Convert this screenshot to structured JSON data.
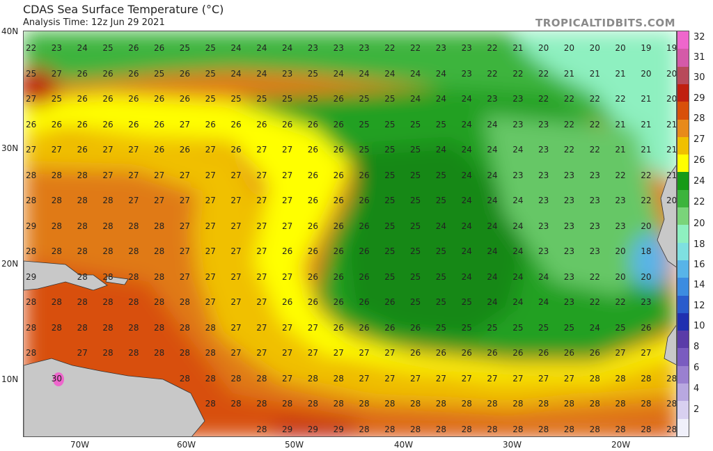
{
  "title": "CDAS Sea Surface Temperature (°C)",
  "subtitle": "Analysis Time: 12z Jun 29 2021",
  "credit": "TROPICALTIDBITS.COM",
  "lat_labels": [
    "40N",
    "30N",
    "20N",
    "10N"
  ],
  "lon_labels": [
    "70W",
    "60W",
    "50W",
    "40W",
    "30W",
    "20W"
  ],
  "colorbar": {
    "labels": [
      "32",
      "31",
      "30",
      "29",
      "28",
      "27",
      "26",
      "24",
      "22",
      "20",
      "18",
      "16",
      "14",
      "12",
      "10",
      "8",
      "6",
      "4",
      "2"
    ],
    "colors": [
      "#ee66cc",
      "#d45aa8",
      "#b84a5a",
      "#c02010",
      "#d8500a",
      "#e88a1a",
      "#f0c000",
      "#ffff00",
      "#179a17",
      "#3cb43c",
      "#7ad47a",
      "#8ef0c0",
      "#7ee0e0",
      "#58b4e8",
      "#3c8ce0",
      "#2a5ccc",
      "#2030b0",
      "#5a3ca8",
      "#7a5cc0",
      "#9a80d0",
      "#b8a8e0",
      "#d8d0f0",
      "#f0f0fa"
    ]
  },
  "land_color": "#c8c8c8",
  "sst_grid": {
    "rows": [
      [
        "22",
        "23",
        "24",
        "25",
        "26",
        "26",
        "25",
        "25",
        "24",
        "24",
        "24",
        "23",
        "23",
        "23",
        "22",
        "22",
        "23",
        "23",
        "22",
        "21",
        "20",
        "20",
        "20",
        "20",
        "19",
        "19"
      ],
      [
        "25",
        "27",
        "26",
        "26",
        "26",
        "25",
        "26",
        "25",
        "24",
        "24",
        "23",
        "25",
        "24",
        "24",
        "24",
        "24",
        "24",
        "23",
        "22",
        "22",
        "22",
        "21",
        "21",
        "21",
        "20",
        "20"
      ],
      [
        "27",
        "25",
        "26",
        "26",
        "26",
        "26",
        "26",
        "25",
        "25",
        "25",
        "25",
        "25",
        "26",
        "25",
        "25",
        "24",
        "24",
        "24",
        "23",
        "23",
        "22",
        "22",
        "22",
        "22",
        "21",
        "20"
      ],
      [
        "26",
        "26",
        "26",
        "26",
        "26",
        "26",
        "27",
        "26",
        "26",
        "26",
        "26",
        "26",
        "26",
        "25",
        "25",
        "25",
        "25",
        "24",
        "24",
        "23",
        "23",
        "22",
        "22",
        "21",
        "21",
        "21"
      ],
      [
        "27",
        "27",
        "26",
        "27",
        "27",
        "26",
        "26",
        "27",
        "26",
        "27",
        "27",
        "26",
        "26",
        "25",
        "25",
        "25",
        "24",
        "24",
        "24",
        "24",
        "23",
        "22",
        "22",
        "21",
        "21",
        "21"
      ],
      [
        "28",
        "28",
        "28",
        "27",
        "27",
        "27",
        "27",
        "27",
        "27",
        "27",
        "27",
        "26",
        "26",
        "26",
        "25",
        "25",
        "25",
        "24",
        "24",
        "23",
        "23",
        "23",
        "23",
        "22",
        "22",
        "21"
      ],
      [
        "28",
        "28",
        "28",
        "28",
        "27",
        "27",
        "27",
        "27",
        "27",
        "27",
        "27",
        "26",
        "26",
        "26",
        "25",
        "25",
        "25",
        "24",
        "24",
        "24",
        "23",
        "23",
        "23",
        "23",
        "22",
        "20"
      ],
      [
        "29",
        "28",
        "28",
        "28",
        "28",
        "28",
        "27",
        "27",
        "27",
        "27",
        "27",
        "26",
        "26",
        "26",
        "25",
        "25",
        "24",
        "24",
        "24",
        "24",
        "23",
        "23",
        "23",
        "23",
        "20",
        ""
      ],
      [
        "28",
        "28",
        "28",
        "28",
        "28",
        "28",
        "27",
        "27",
        "27",
        "27",
        "26",
        "26",
        "26",
        "26",
        "25",
        "25",
        "25",
        "24",
        "24",
        "24",
        "23",
        "23",
        "23",
        "20",
        "18",
        ""
      ],
      [
        "29",
        "",
        "28",
        "28",
        "28",
        "28",
        "27",
        "27",
        "27",
        "27",
        "27",
        "26",
        "26",
        "26",
        "25",
        "25",
        "25",
        "24",
        "24",
        "24",
        "24",
        "23",
        "22",
        "20",
        "20",
        ""
      ],
      [
        "28",
        "28",
        "28",
        "28",
        "28",
        "28",
        "28",
        "27",
        "27",
        "27",
        "26",
        "26",
        "26",
        "26",
        "26",
        "25",
        "25",
        "25",
        "24",
        "24",
        "24",
        "23",
        "22",
        "22",
        "23",
        ""
      ],
      [
        "28",
        "28",
        "28",
        "28",
        "28",
        "28",
        "28",
        "28",
        "27",
        "27",
        "27",
        "27",
        "26",
        "26",
        "26",
        "26",
        "25",
        "25",
        "25",
        "25",
        "25",
        "25",
        "24",
        "25",
        "26",
        ""
      ],
      [
        "28",
        "",
        "27",
        "28",
        "28",
        "28",
        "28",
        "28",
        "27",
        "27",
        "27",
        "27",
        "27",
        "27",
        "27",
        "26",
        "26",
        "26",
        "26",
        "26",
        "26",
        "26",
        "26",
        "27",
        "27",
        ""
      ],
      [
        "",
        "30",
        "",
        "",
        "",
        "",
        "28",
        "28",
        "28",
        "28",
        "27",
        "28",
        "28",
        "27",
        "27",
        "27",
        "27",
        "27",
        "27",
        "27",
        "27",
        "27",
        "28",
        "28",
        "28",
        "28"
      ],
      [
        "",
        "",
        "",
        "",
        "",
        "",
        "",
        "28",
        "28",
        "28",
        "28",
        "28",
        "28",
        "28",
        "28",
        "28",
        "28",
        "28",
        "28",
        "28",
        "28",
        "28",
        "28",
        "28",
        "28",
        "28"
      ],
      [
        "",
        "",
        "",
        "",
        "",
        "",
        "",
        "",
        "",
        "28",
        "29",
        "29",
        "29",
        "28",
        "28",
        "28",
        "28",
        "28",
        "28",
        "28",
        "28",
        "28",
        "28",
        "28",
        "28",
        "28"
      ]
    ]
  }
}
